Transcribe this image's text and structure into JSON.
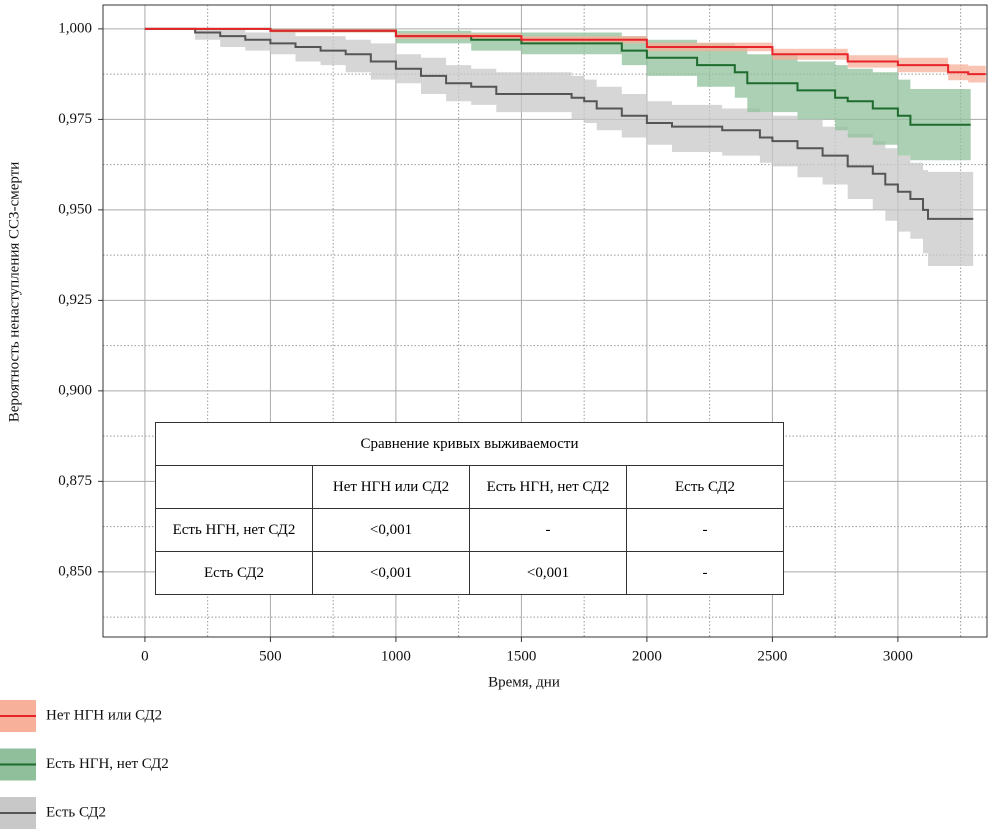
{
  "chart_data": {
    "type": "survival",
    "xlabel": "Время, дни",
    "ylabel": "Вероятность ненаступления ССЗ-смерти",
    "xlim": [
      -167,
      3355
    ],
    "ylim": [
      0.832,
      1.0066
    ],
    "xticks": [
      0,
      500,
      1000,
      1500,
      2000,
      2500,
      3000
    ],
    "yticks": [
      {
        "value": 0.85,
        "label": "0,850"
      },
      {
        "value": 0.875,
        "label": "0,875"
      },
      {
        "value": 0.9,
        "label": "0,900"
      },
      {
        "value": 0.925,
        "label": "0,925"
      },
      {
        "value": 0.95,
        "label": "0,950"
      },
      {
        "value": 0.975,
        "label": "0,975"
      },
      {
        "value": 1.0,
        "label": "1,000"
      }
    ],
    "minor_xticks": [
      250,
      750,
      1250,
      1750,
      2250,
      2750,
      3250
    ],
    "minor_yticks": [
      0.8375,
      0.8625,
      0.8875,
      0.9125,
      0.9375,
      0.9625,
      0.9875
    ],
    "grid": true,
    "legend": "bottom-left",
    "series": [
      {
        "name": "Есть СД2",
        "color": "#555555",
        "band_color": "#c8c8c8",
        "x": [
          0,
          200,
          300,
          400,
          500,
          600,
          700,
          800,
          900,
          1000,
          1100,
          1200,
          1300,
          1400,
          1700,
          1750,
          1800,
          1900,
          2000,
          2100,
          2300,
          2450,
          2500,
          2600,
          2700,
          2800,
          2900,
          2950,
          3000,
          3050,
          3100,
          3120,
          3300
        ],
        "values": [
          1,
          0.999,
          0.998,
          0.997,
          0.996,
          0.995,
          0.994,
          0.993,
          0.991,
          0.989,
          0.987,
          0.985,
          0.984,
          0.982,
          0.981,
          0.98,
          0.978,
          0.976,
          0.974,
          0.973,
          0.972,
          0.97,
          0.969,
          0.967,
          0.965,
          0.962,
          0.96,
          0.957,
          0.955,
          0.953,
          0.95,
          0.9475,
          0.9475
        ],
        "lower": [
          1,
          0.997,
          0.995,
          0.994,
          0.993,
          0.991,
          0.99,
          0.988,
          0.986,
          0.985,
          0.982,
          0.98,
          0.979,
          0.977,
          0.975,
          0.974,
          0.972,
          0.97,
          0.968,
          0.966,
          0.965,
          0.963,
          0.962,
          0.959,
          0.957,
          0.953,
          0.95,
          0.947,
          0.944,
          0.942,
          0.938,
          0.9345,
          0.9345
        ],
        "upper": [
          1,
          1,
          1,
          0.999,
          0.999,
          0.998,
          0.998,
          0.997,
          0.996,
          0.993,
          0.992,
          0.99,
          0.989,
          0.988,
          0.987,
          0.986,
          0.984,
          0.982,
          0.98,
          0.979,
          0.978,
          0.977,
          0.976,
          0.975,
          0.973,
          0.971,
          0.969,
          0.967,
          0.965,
          0.963,
          0.961,
          0.9605,
          0.9605
        ]
      },
      {
        "name": "Есть НГН, нет СД2",
        "color": "#1e6b2e",
        "band_color": "#8fc09b",
        "x": [
          0,
          500,
          1000,
          1300,
          1500,
          1900,
          2000,
          2200,
          2350,
          2400,
          2600,
          2750,
          2800,
          2900,
          3000,
          3050,
          3290
        ],
        "values": [
          1,
          0.9995,
          0.998,
          0.997,
          0.996,
          0.994,
          0.992,
          0.99,
          0.988,
          0.985,
          0.983,
          0.981,
          0.98,
          0.978,
          0.976,
          0.9735,
          0.9735
        ],
        "lower": [
          1,
          0.999,
          0.996,
          0.994,
          0.993,
          0.99,
          0.987,
          0.984,
          0.981,
          0.977,
          0.975,
          0.972,
          0.97,
          0.968,
          0.965,
          0.9637,
          0.9637
        ],
        "upper": [
          1,
          1,
          0.9995,
          0.999,
          0.999,
          0.998,
          0.997,
          0.996,
          0.995,
          0.993,
          0.991,
          0.99,
          0.989,
          0.988,
          0.986,
          0.9834,
          0.9834
        ]
      },
      {
        "name": "Нет НГН или СД2",
        "color": "#e8242a",
        "band_color": "#f7b09a",
        "x": [
          0,
          500,
          1000,
          1500,
          2000,
          2500,
          2800,
          3000,
          3200,
          3280,
          3350
        ],
        "values": [
          1,
          0.9995,
          0.998,
          0.997,
          0.995,
          0.993,
          0.991,
          0.99,
          0.988,
          0.9875,
          0.9875
        ],
        "lower": [
          1,
          0.999,
          0.9972,
          0.996,
          0.9938,
          0.9915,
          0.9893,
          0.988,
          0.9858,
          0.9852,
          0.9852
        ],
        "upper": [
          1,
          1,
          0.9988,
          0.998,
          0.9962,
          0.9945,
          0.9927,
          0.992,
          0.9902,
          0.9898,
          0.9898
        ]
      }
    ]
  },
  "table": {
    "title": "Сравнение кривых выживаемости",
    "columns": [
      "Нет НГН или СД2",
      "Есть НГН, нет СД2",
      "Есть СД2"
    ],
    "rows": [
      {
        "label": "Есть НГН, нет СД2",
        "cells": [
          "<0,001",
          "-",
          "-"
        ]
      },
      {
        "label": "Есть СД2",
        "cells": [
          "<0,001",
          "<0,001",
          "-"
        ]
      }
    ]
  }
}
